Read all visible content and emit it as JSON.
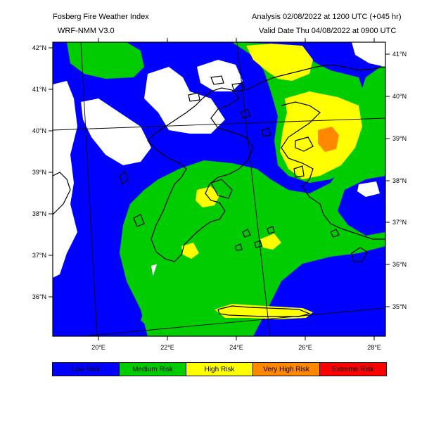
{
  "header": {
    "title": "Fosberg Fire Weather Index",
    "model": "WRF-NMM V3.0",
    "analysis": "Analysis 02/08/2022 at 1200 UTC (+045 hr)",
    "valid": "Valid Date Thu 04/08/2022 at 0900 UTC"
  },
  "axes": {
    "left_lat": [
      "42°N",
      "41°N",
      "40°N",
      "39°N",
      "38°N",
      "37°N",
      "36°N"
    ],
    "right_lat": [
      "41°N",
      "40°N",
      "39°N",
      "38°N",
      "37°N",
      "36°N",
      "35°N"
    ],
    "bottom_lon": [
      "20°E",
      "22°E",
      "24°E",
      "26°E",
      "28°E"
    ]
  },
  "legend": [
    {
      "label": "Low Risk",
      "color": "#0000ff"
    },
    {
      "label": "Medium Risk",
      "color": "#00cc00"
    },
    {
      "label": "High Risk",
      "color": "#ffff00"
    },
    {
      "label": "Very High Risk",
      "color": "#ff8800"
    },
    {
      "label": "Extreme Risk",
      "color": "#ff0000"
    }
  ],
  "colors": {
    "low": "#0000ff",
    "medium": "#00cc00",
    "high": "#ffff00",
    "very_high": "#ff8800",
    "no_data": "#ffffff"
  }
}
